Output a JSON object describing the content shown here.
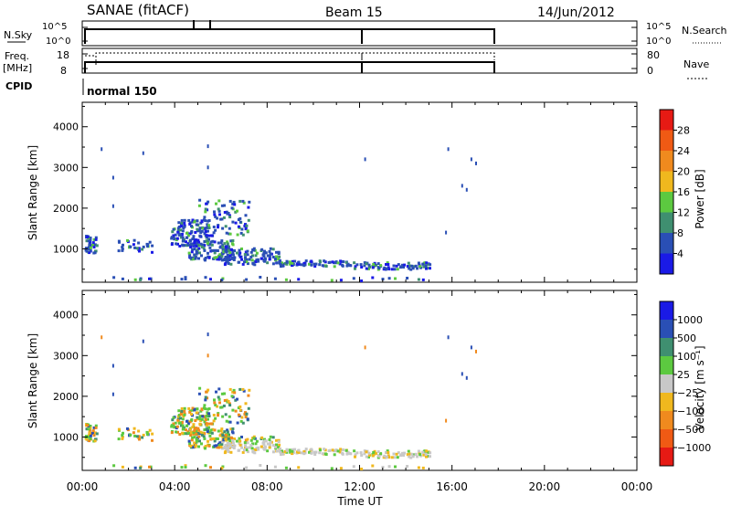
{
  "header": {
    "station": "SANAE (fitACF)",
    "beam": "Beam 15",
    "date": "14/Jun/2012"
  },
  "strips": {
    "nsky_label": "N.Sky",
    "nsky_ticks": [
      "10^5",
      "10^0"
    ],
    "nsearch_label": "N.Search",
    "nsearch_ticks": [
      "10^5",
      "10^0"
    ],
    "freq_label": "Freq.",
    "freq_unit": "[MHz]",
    "freq_ticks": [
      "18",
      "8"
    ],
    "nave_label": "Nave",
    "nave_ticks": [
      "80",
      "0"
    ],
    "cpid_label": "CPID",
    "cpid_value": "normal 150"
  },
  "chart_data": [
    {
      "type": "heatmap",
      "name": "power",
      "xlabel": "Time UT",
      "ylabel": "Slant Range [km]",
      "xlim": [
        0,
        24
      ],
      "ylim": [
        180,
        4600
      ],
      "x_ticks": [
        "00:00",
        "04:00",
        "08:00",
        "12:00",
        "16:00",
        "20:00",
        "00:00"
      ],
      "y_ticks": [
        1000,
        2000,
        3000,
        4000
      ],
      "colorbar_label": "Power [dB]",
      "colorbar_ticks": [
        "4",
        "8",
        "12",
        "16",
        "20",
        "24",
        "28"
      ],
      "colorbar_colors": [
        "#1a1ae6",
        "#2a4fb5",
        "#3f8f70",
        "#5cc940",
        "#f0b81e",
        "#f08a1e",
        "#f05a14",
        "#e61a14"
      ]
    },
    {
      "type": "heatmap",
      "name": "velocity",
      "xlabel": "Time UT",
      "ylabel": "Slant Range [km]",
      "xlim": [
        0,
        24
      ],
      "ylim": [
        180,
        4600
      ],
      "x_ticks": [
        "00:00",
        "04:00",
        "08:00",
        "12:00",
        "16:00",
        "20:00",
        "00:00"
      ],
      "y_ticks": [
        1000,
        2000,
        3000,
        4000
      ],
      "colorbar_label": "Velocity [m s⁻¹]",
      "colorbar_ticks": [
        "1000",
        "500",
        "100",
        "25",
        "−25",
        "−100",
        "−500",
        "−1000"
      ],
      "colorbar_colors": [
        "#1a1ae6",
        "#2a4fb5",
        "#3f8f70",
        "#5cc940",
        "#c8c8c8",
        "#f0b81e",
        "#f08a1e",
        "#f05a14",
        "#e61a14"
      ]
    }
  ]
}
